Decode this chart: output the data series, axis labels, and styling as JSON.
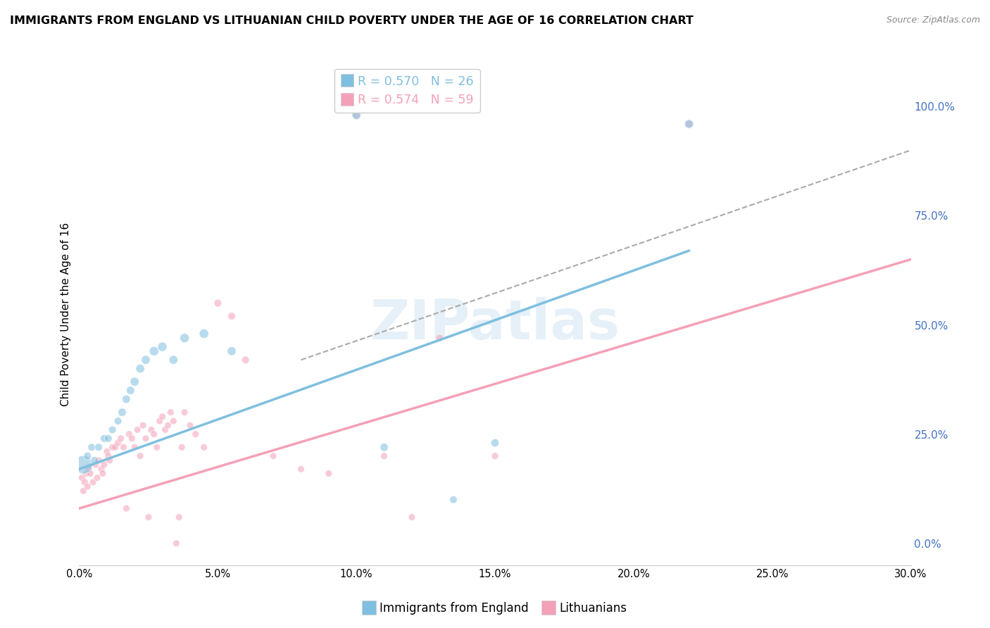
{
  "title": "IMMIGRANTS FROM ENGLAND VS LITHUANIAN CHILD POVERTY UNDER THE AGE OF 16 CORRELATION CHART",
  "source": "Source: ZipAtlas.com",
  "ylabel": "Child Poverty Under the Age of 16",
  "legend_blue_r": "R = 0.570",
  "legend_blue_n": "N = 26",
  "legend_pink_r": "R = 0.574",
  "legend_pink_n": "N = 59",
  "blue_color": "#7fbfdf",
  "pink_color": "#f4a0b8",
  "watermark": "ZIPatlas",
  "blue_points_x": [
    0.15,
    0.3,
    0.45,
    0.55,
    0.7,
    0.9,
    1.05,
    1.2,
    1.4,
    1.55,
    1.7,
    1.85,
    2.0,
    2.2,
    2.4,
    2.7,
    3.0,
    3.4,
    3.8,
    4.5,
    5.5,
    10.0,
    11.0,
    13.5,
    15.0,
    22.0
  ],
  "blue_points_y": [
    18,
    20,
    22,
    19,
    22,
    24,
    24,
    26,
    28,
    30,
    33,
    35,
    37,
    40,
    42,
    44,
    45,
    42,
    47,
    48,
    44,
    98,
    22,
    10,
    23,
    96
  ],
  "blue_sizes": [
    350,
    60,
    60,
    60,
    60,
    60,
    60,
    60,
    60,
    70,
    70,
    70,
    80,
    80,
    80,
    90,
    90,
    80,
    90,
    90,
    80,
    80,
    70,
    60,
    70,
    80
  ],
  "pink_points_x": [
    0.1,
    0.15,
    0.2,
    0.25,
    0.3,
    0.35,
    0.4,
    0.5,
    0.6,
    0.65,
    0.7,
    0.8,
    0.85,
    0.9,
    1.0,
    1.05,
    1.1,
    1.2,
    1.3,
    1.4,
    1.5,
    1.6,
    1.7,
    1.8,
    1.9,
    2.0,
    2.1,
    2.2,
    2.3,
    2.4,
    2.5,
    2.6,
    2.7,
    2.8,
    2.9,
    3.0,
    3.1,
    3.2,
    3.3,
    3.4,
    3.5,
    3.6,
    3.7,
    3.8,
    4.0,
    4.2,
    4.5,
    5.0,
    5.5,
    6.0,
    7.0,
    8.0,
    9.0,
    10.0,
    11.0,
    12.0,
    13.0,
    15.0,
    22.0
  ],
  "pink_points_y": [
    15,
    12,
    14,
    16,
    13,
    17,
    16,
    14,
    18,
    15,
    19,
    17,
    16,
    18,
    21,
    20,
    19,
    22,
    22,
    23,
    24,
    22,
    8,
    25,
    24,
    22,
    26,
    20,
    27,
    24,
    6,
    26,
    25,
    22,
    28,
    29,
    26,
    27,
    30,
    28,
    0,
    6,
    22,
    30,
    27,
    25,
    22,
    55,
    52,
    42,
    20,
    17,
    16,
    98,
    20,
    6,
    47,
    20,
    96
  ],
  "pink_sizes": [
    50,
    50,
    50,
    50,
    50,
    50,
    50,
    50,
    50,
    50,
    50,
    50,
    50,
    50,
    50,
    50,
    50,
    50,
    50,
    50,
    50,
    50,
    50,
    50,
    50,
    50,
    50,
    50,
    50,
    50,
    50,
    50,
    50,
    50,
    50,
    50,
    50,
    50,
    50,
    50,
    50,
    50,
    50,
    50,
    50,
    50,
    50,
    60,
    60,
    60,
    50,
    50,
    50,
    60,
    50,
    50,
    60,
    50,
    60
  ],
  "xlim": [
    0.0,
    30.0
  ],
  "ylim": [
    -5.0,
    110.0
  ],
  "x_ticks": [
    0.0,
    5.0,
    10.0,
    15.0,
    20.0,
    25.0,
    30.0
  ],
  "x_tick_labels": [
    "0.0%",
    "5.0%",
    "10.0%",
    "15.0%",
    "20.0%",
    "25.0%",
    "30.0%"
  ],
  "y_right_vals": [
    0.0,
    25.0,
    50.0,
    75.0,
    100.0
  ],
  "y_right_labels": [
    "0.0%",
    "25.0%",
    "50.0%",
    "75.0%",
    "100.0%"
  ],
  "blue_line_x": [
    0.0,
    22.0
  ],
  "blue_line_y": [
    17.0,
    67.0
  ],
  "pink_line_x": [
    0.0,
    30.0
  ],
  "pink_line_y": [
    8.0,
    65.0
  ],
  "dashed_line_x": [
    8.0,
    30.0
  ],
  "dashed_line_y": [
    42.0,
    90.0
  ],
  "grid_color": "#cccccc",
  "grid_linestyle": "--",
  "background_color": "#ffffff",
  "title_fontsize": 11.5,
  "source_fontsize": 9,
  "right_tick_color": "#4472c4"
}
